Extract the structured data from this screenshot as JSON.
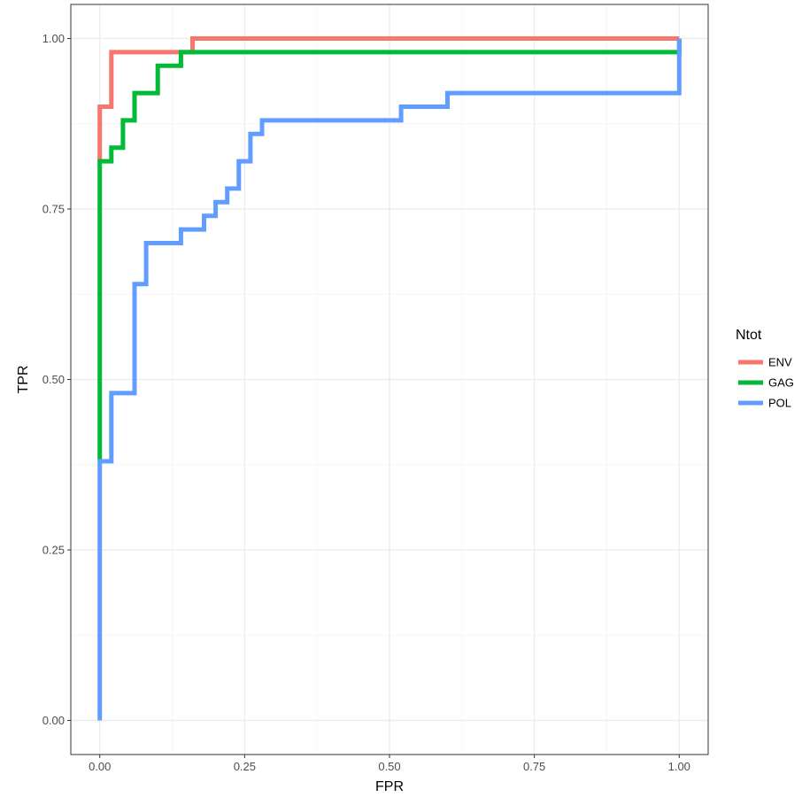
{
  "chart_data": {
    "type": "line",
    "title": "",
    "xlabel": "FPR",
    "ylabel": "TPR",
    "xlim": [
      -0.05,
      1.05
    ],
    "ylim": [
      -0.05,
      1.05
    ],
    "grid": true,
    "step": true,
    "x_ticks": [
      0,
      0.25,
      0.5,
      0.75,
      1
    ],
    "x_tick_labels": [
      "0.00",
      "0.25",
      "0.50",
      "0.75",
      "1.00"
    ],
    "y_ticks": [
      0,
      0.25,
      0.5,
      0.75,
      1
    ],
    "y_tick_labels": [
      "0.00",
      "0.25",
      "0.50",
      "0.75",
      "1.00"
    ],
    "legend": {
      "title": "Ntot",
      "placement": "right"
    },
    "series": [
      {
        "name": "ENV",
        "color": "#F8766D",
        "x": [
          0,
          0,
          0.02,
          0.02,
          0.16,
          0.16,
          1
        ],
        "y": [
          0.82,
          0.9,
          0.9,
          0.98,
          0.98,
          1.0,
          1.0
        ]
      },
      {
        "name": "GAG",
        "color": "#00BA38",
        "x": [
          0,
          0,
          0.02,
          0.02,
          0.04,
          0.04,
          0.06,
          0.06,
          0.1,
          0.1,
          0.14,
          0.14,
          1,
          1
        ],
        "y": [
          0.38,
          0.82,
          0.82,
          0.84,
          0.84,
          0.88,
          0.88,
          0.92,
          0.92,
          0.96,
          0.96,
          0.98,
          0.98,
          1.0
        ]
      },
      {
        "name": "POL",
        "color": "#619CFF",
        "x": [
          0,
          0,
          0.02,
          0.02,
          0.06,
          0.06,
          0.08,
          0.08,
          0.14,
          0.14,
          0.18,
          0.18,
          0.2,
          0.2,
          0.22,
          0.22,
          0.24,
          0.24,
          0.26,
          0.26,
          0.28,
          0.28,
          0.52,
          0.52,
          0.6,
          0.6,
          1,
          1
        ],
        "y": [
          0,
          0.38,
          0.38,
          0.48,
          0.48,
          0.64,
          0.64,
          0.7,
          0.7,
          0.72,
          0.72,
          0.74,
          0.74,
          0.76,
          0.76,
          0.78,
          0.78,
          0.82,
          0.82,
          0.86,
          0.86,
          0.88,
          0.88,
          0.9,
          0.9,
          0.92,
          0.92,
          1.0
        ]
      }
    ]
  }
}
